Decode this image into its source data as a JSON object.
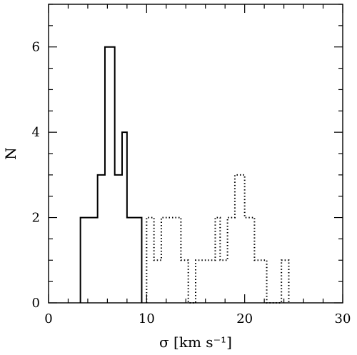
{
  "chart_data": {
    "type": "histogram",
    "xlabel": "σ [km s⁻¹]",
    "ylabel": "N",
    "xlim": [
      0,
      30
    ],
    "ylim": [
      0,
      7
    ],
    "x_ticks": [
      0,
      10,
      20,
      30
    ],
    "y_ticks": [
      0,
      2,
      4,
      6
    ],
    "x_tick_labels": [
      "0",
      "10",
      "20",
      "30"
    ],
    "y_tick_labels": [
      "0",
      "2",
      "4",
      "6"
    ],
    "grid": false,
    "series": [
      {
        "style": "solid",
        "color": "#000000",
        "bin_edges": [
          3.25,
          5.0,
          5.75,
          6.0,
          6.75,
          7.5,
          8.0,
          9.0,
          9.5
        ],
        "counts": [
          2,
          3,
          6,
          6,
          3,
          4,
          2,
          2
        ]
      },
      {
        "style": "dotted",
        "color": "#000000",
        "bin_edges": [
          10.0,
          10.75,
          11.5,
          12.0,
          13.5,
          14.25,
          15.0,
          17.0,
          17.5,
          18.25,
          19.0,
          20.0,
          21.0,
          22.25,
          23.75,
          24.5
        ],
        "counts": [
          2,
          1,
          2,
          2,
          1,
          0,
          1,
          2,
          1,
          2,
          3,
          2,
          1,
          0,
          1
        ]
      }
    ]
  }
}
